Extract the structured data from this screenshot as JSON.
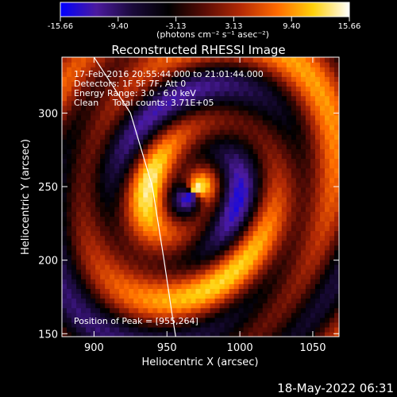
{
  "chart_data": {
    "type": "heatmap",
    "title": "Reconstructed RHESSI Image",
    "xlabel": "Heliocentric X (arcsec)",
    "ylabel": "Heliocentric Y (arcsec)",
    "xlim": [
      878,
      1068
    ],
    "ylim": [
      148,
      338
    ],
    "x_ticks": [
      900,
      950,
      1000,
      1050
    ],
    "y_ticks": [
      150,
      200,
      250,
      300
    ],
    "colorbar": {
      "min": -15.66,
      "max": 15.66,
      "tick_labels": [
        "-15.66",
        "-9.40",
        "-3.13",
        "3.13",
        "9.40",
        "15.66"
      ],
      "unit_label": "(photons cm⁻² s⁻¹ asec⁻²)",
      "colors": [
        "#0000ff",
        "#4b1a9e",
        "#1a0a3a",
        "#000000",
        "#5a0c05",
        "#b42a05",
        "#ff6a00",
        "#ffd10a",
        "#ffffff"
      ]
    },
    "annotations": [
      "17-Feb-2016 20:55:44.000 to 21:01:44.000",
      "Detectors: 1F 5F 7F, Att 0",
      "Energy Range: 3.0 - 6.0 keV",
      "Clean     Total counts: 3.71E+05"
    ],
    "peak_label": "Position of Peak = [955,264]",
    "limb": {
      "description": "solar limb",
      "points": [
        [
          900,
          338
        ],
        [
          925,
          300
        ],
        [
          940,
          250
        ],
        [
          948,
          200
        ],
        [
          954,
          160
        ],
        [
          956,
          148
        ]
      ]
    },
    "pattern": {
      "center": [
        968,
        246
      ],
      "peak_value": 15.66,
      "min_value": -15.66
    }
  },
  "footer": {
    "timestamp": "18-May-2022 06:31"
  }
}
